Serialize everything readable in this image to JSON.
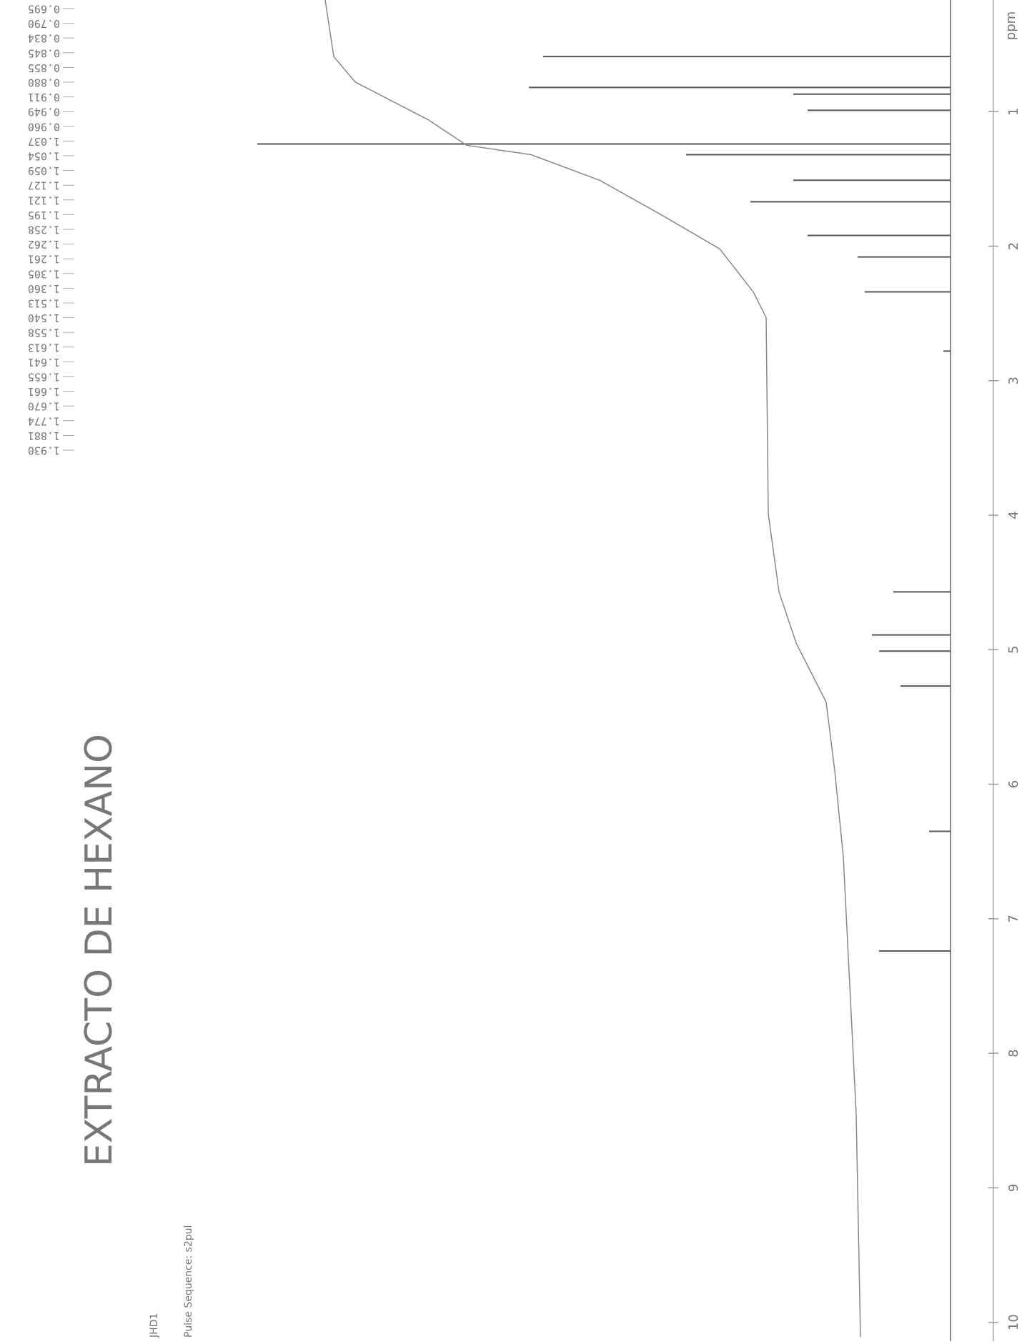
{
  "chart_data": {
    "type": "nmr",
    "title": "EXTRACTO DE HEXANO",
    "pulse_sequence": "Pulse Sequence: s2pul",
    "sample": "JHD1",
    "x_label": "ppm",
    "peak_list": [
      "0.695",
      "0.790",
      "0.834",
      "0.845",
      "0.855",
      "0.880",
      "0.911",
      "0.949",
      "0.960",
      "1.037",
      "1.054",
      "1.059",
      "1.127",
      "1.121",
      "1.195",
      "1.258",
      "1.262",
      "1.261",
      "1.305",
      "1.360",
      "1.513",
      "1.540",
      "1.558",
      "1.613",
      "1.641",
      "1.655",
      "1.661",
      "1.670",
      "1.774",
      "1.881",
      "1.930"
    ],
    "xlim": [
      0.17,
      10.14
    ],
    "xticks": [
      1,
      2,
      3,
      4,
      5,
      6,
      7,
      8,
      9,
      10
    ],
    "ylim": [
      0,
      100
    ],
    "series": [
      {
        "type": "stick",
        "color": "#555555",
        "x": [
          0.59,
          0.82,
          0.87,
          0.99,
          1.24,
          1.32,
          1.51,
          1.67,
          1.92,
          2.08,
          2.34,
          2.78,
          4.57,
          4.89,
          5.01,
          5.27,
          6.35,
          7.24
        ],
        "values": [
          57,
          59,
          22,
          20,
          97,
          37,
          22,
          28,
          20,
          13,
          12,
          1,
          8,
          11,
          10,
          7,
          3,
          10
        ]
      },
      {
        "type": "line",
        "color": "#888888",
        "x": [
          0.17,
          0.59,
          0.78,
          1.06,
          1.25,
          1.32,
          1.51,
          1.76,
          2.02,
          2.34,
          2.53,
          3.99,
          4.57,
          4.95,
          5.39,
          5.9,
          6.54,
          8.45,
          10.11
        ],
        "values": [
          87.5,
          86.3,
          83.3,
          73.1,
          67.7,
          58.7,
          49.1,
          40.7,
          32.3,
          27.6,
          25.8,
          25.5,
          24.0,
          21.6,
          17.4,
          16.2,
          15.0,
          13.2,
          12.6
        ]
      }
    ]
  }
}
